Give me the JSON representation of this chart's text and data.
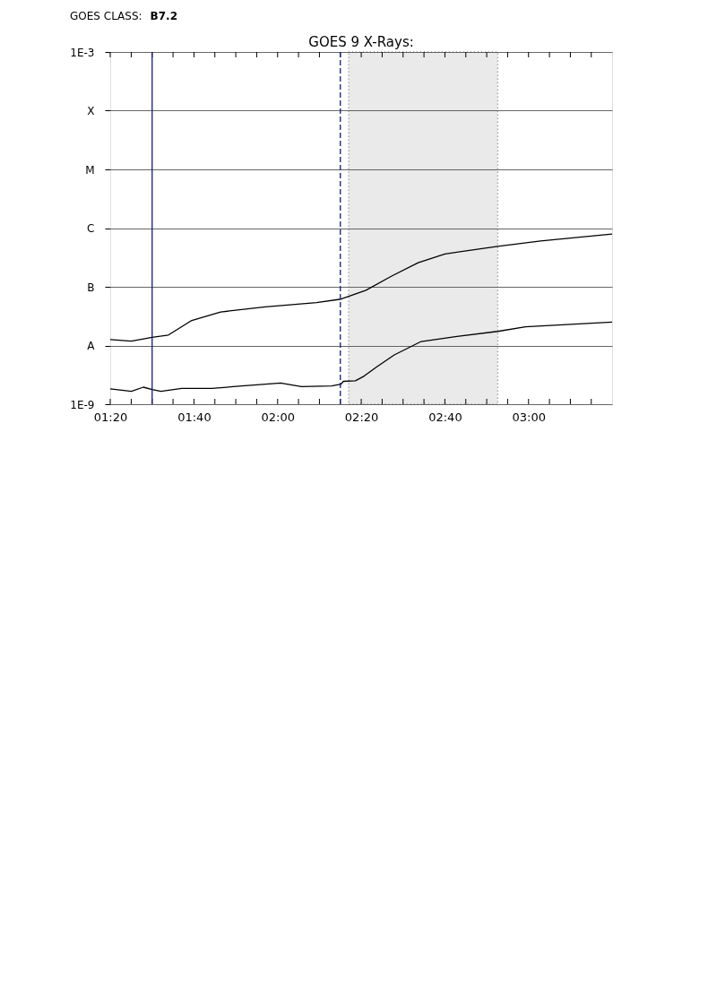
{
  "chart_data": {
    "type": "line",
    "title": "GOES 9 X-Rays:",
    "annotations": [
      "GOES CLASS:",
      "B7.2"
    ],
    "log": true,
    "grid": "y",
    "marker": "none",
    "line_style": "solid",
    "xlim": [
      1.333,
      3.333
    ],
    "xticks": [
      {
        "value": 1.333,
        "label": "01:20"
      },
      {
        "value": 1.4167,
        "label": null
      },
      {
        "value": 1.5,
        "label": null
      },
      {
        "value": 1.5833,
        "label": null
      },
      {
        "value": 1.6667,
        "label": "01:40"
      },
      {
        "value": 1.75,
        "label": null
      },
      {
        "value": 1.8333,
        "label": null
      },
      {
        "value": 1.9167,
        "label": null
      },
      {
        "value": 2.0,
        "label": "02:00"
      },
      {
        "value": 2.0833,
        "label": null
      },
      {
        "value": 2.1667,
        "label": null
      },
      {
        "value": 2.25,
        "label": null
      },
      {
        "value": 2.3333,
        "label": "02:20"
      },
      {
        "value": 2.4167,
        "label": null
      },
      {
        "value": 2.5,
        "label": null
      },
      {
        "value": 2.5833,
        "label": null
      },
      {
        "value": 2.6667,
        "label": "02:40"
      },
      {
        "value": 2.75,
        "label": null
      },
      {
        "value": 2.8333,
        "label": null
      },
      {
        "value": 2.9167,
        "label": null
      },
      {
        "value": 3.0,
        "label": "03:00"
      },
      {
        "value": 3.0833,
        "label": null
      },
      {
        "value": 3.1667,
        "label": null
      },
      {
        "value": 3.25,
        "label": null
      }
    ],
    "ylim": [
      1e-09,
      0.001
    ],
    "yticks": [
      {
        "value": 1e-09,
        "label": "1E-9"
      },
      {
        "value": 1e-08,
        "label": "A"
      },
      {
        "value": 1e-07,
        "label": "B"
      },
      {
        "value": 1e-06,
        "label": "C"
      },
      {
        "value": 1e-05,
        "label": "M"
      },
      {
        "value": 0.0001,
        "label": "X"
      },
      {
        "value": 0.001,
        "label": "1E-3"
      }
    ],
    "series": [
      {
        "color": "#000000",
        "x": [
          1.333,
          1.417,
          1.5,
          1.565,
          1.655,
          1.773,
          1.952,
          2.155,
          2.253,
          2.352,
          2.453,
          2.56,
          2.667,
          2.877,
          3.048,
          3.333
        ],
        "values": [
          1.26e-08,
          1.19e-08,
          1.38e-08,
          1.51e-08,
          2.63e-08,
          3.72e-08,
          4.57e-08,
          5.37e-08,
          6.17e-08,
          8.71e-08,
          1.51e-07,
          2.57e-07,
          3.63e-07,
          4.9e-07,
          6.03e-07,
          7.94e-07
        ]
      },
      {
        "color": "#000000",
        "x": [
          1.333,
          1.417,
          1.465,
          1.5,
          1.535,
          1.618,
          1.738,
          1.857,
          2.012,
          2.095,
          2.215,
          2.253,
          2.262,
          2.31,
          2.345,
          2.393,
          2.465,
          2.572,
          2.69,
          2.877,
          2.988,
          3.333
        ],
        "values": [
          1.82e-09,
          1.66e-09,
          1.95e-09,
          1.78e-09,
          1.66e-09,
          1.86e-09,
          1.86e-09,
          2.04e-09,
          2.29e-09,
          2e-09,
          2.04e-09,
          2.19e-09,
          2.45e-09,
          2.51e-09,
          3.02e-09,
          4.27e-09,
          6.92e-09,
          1.17e-08,
          1.38e-08,
          1.74e-08,
          2.09e-08,
          2.51e-08
        ]
      }
    ],
    "ref_lines": [
      {
        "axis": "x",
        "value": 1.5,
        "color": "#1a1a6e",
        "line_style": "solid"
      },
      {
        "axis": "x",
        "value": 2.25,
        "color": "#1a1a6e",
        "line_style": "dashed"
      }
    ],
    "bands": [
      {
        "axis": "x",
        "from": 2.283,
        "to": 2.877,
        "color": "#555555"
      }
    ]
  }
}
